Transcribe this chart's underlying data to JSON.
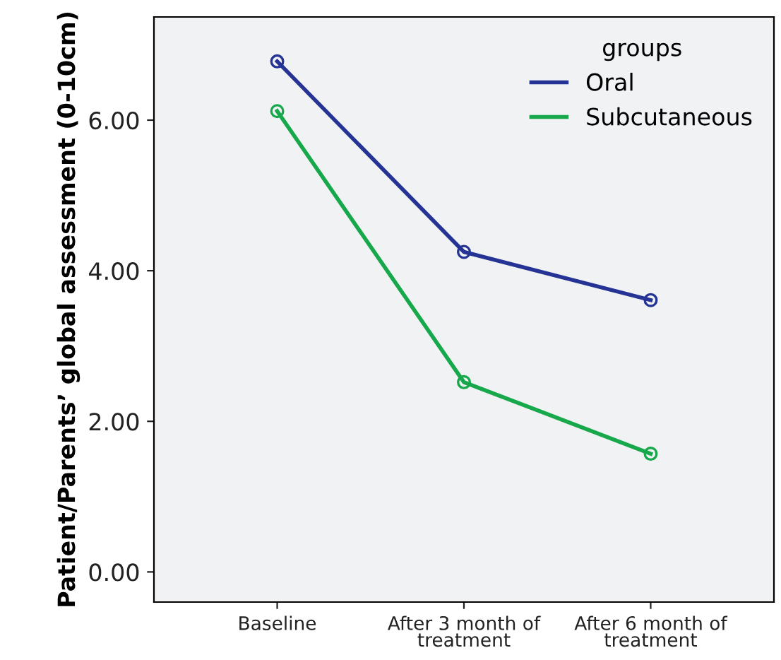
{
  "chart_data": {
    "type": "line",
    "ylabel": "Patient/Parents’ global assessment (0-10cm)",
    "categories": [
      "Baseline",
      "After 3 month of\ntreatment",
      "After 6 month of\ntreatment"
    ],
    "series": [
      {
        "name": "Oral",
        "color": "#253494",
        "values": [
          6.78,
          4.25,
          3.61
        ]
      },
      {
        "name": "Subcutaneous",
        "color": "#16a84a",
        "values": [
          6.12,
          2.52,
          1.57
        ]
      }
    ],
    "legend_title": "groups",
    "legend": "top right",
    "marker": "circle",
    "ylim": [
      -0.4,
      7.37
    ],
    "yticks": [
      {
        "value": 0,
        "label": "0.00"
      },
      {
        "value": 2,
        "label": "2.00"
      },
      {
        "value": 4,
        "label": "4.00"
      },
      {
        "value": 6,
        "label": "6.00"
      }
    ],
    "grid": false
  }
}
